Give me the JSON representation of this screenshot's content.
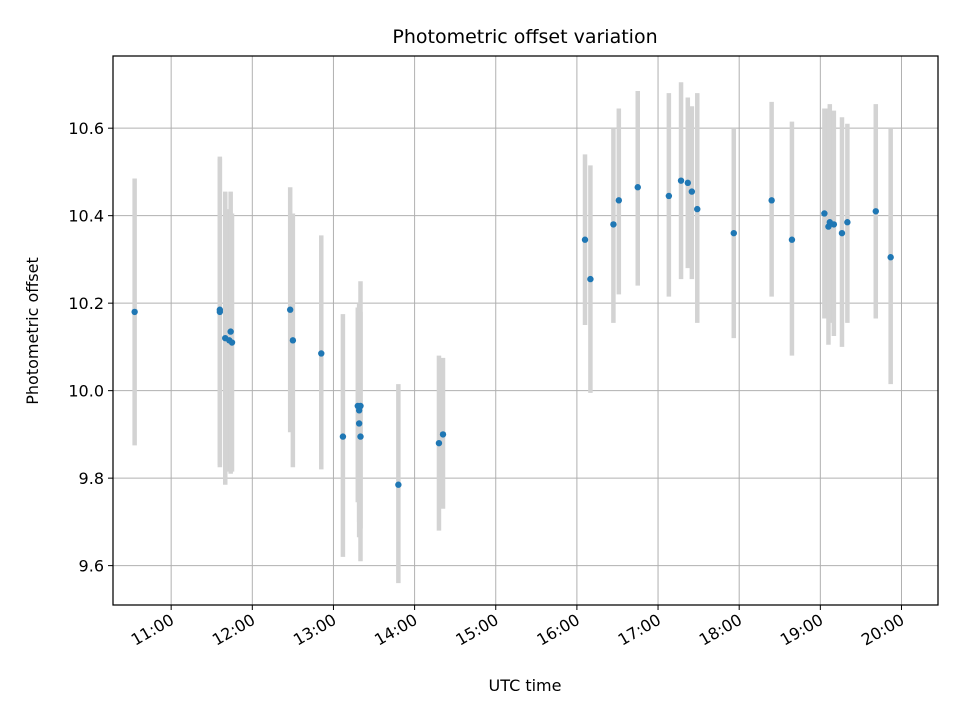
{
  "chart_data": {
    "type": "scatter",
    "title": "Photometric offset variation",
    "xlabel": "UTC time",
    "ylabel": "Photometric offset",
    "xlim": [
      "10:17",
      "20:27"
    ],
    "ylim": [
      9.51,
      10.765
    ],
    "grid": true,
    "x_ticks": [
      "11:00",
      "12:00",
      "13:00",
      "14:00",
      "15:00",
      "16:00",
      "17:00",
      "18:00",
      "19:00",
      "20:00"
    ],
    "y_ticks": [
      9.6,
      9.8,
      10.0,
      10.2,
      10.4,
      10.6
    ],
    "y_tick_labels": [
      "9.6",
      "9.8",
      "10.0",
      "10.2",
      "10.4",
      "10.6"
    ],
    "colors": {
      "point": "#1f77b4",
      "errorbar": "#d3d3d3",
      "grid": "#b0b0b0"
    },
    "points": [
      {
        "x": "10:33",
        "y": 10.18,
        "ylo": 9.875,
        "yhi": 10.485
      },
      {
        "x": "11:36",
        "y": 10.185,
        "ylo": 9.825,
        "yhi": 10.535
      },
      {
        "x": "11:36",
        "y": 10.18,
        "ylo": 9.83,
        "yhi": 10.53
      },
      {
        "x": "11:40",
        "y": 10.12,
        "ylo": 9.785,
        "yhi": 10.455
      },
      {
        "x": "11:43",
        "y": 10.115,
        "ylo": 9.815,
        "yhi": 10.415
      },
      {
        "x": "11:44",
        "y": 10.135,
        "ylo": 9.81,
        "yhi": 10.455
      },
      {
        "x": "11:45",
        "y": 10.11,
        "ylo": 9.815,
        "yhi": 10.405
      },
      {
        "x": "12:28",
        "y": 10.185,
        "ylo": 9.905,
        "yhi": 10.465
      },
      {
        "x": "12:30",
        "y": 10.115,
        "ylo": 9.825,
        "yhi": 10.405
      },
      {
        "x": "12:51",
        "y": 10.085,
        "ylo": 9.82,
        "yhi": 10.355
      },
      {
        "x": "13:07",
        "y": 9.895,
        "ylo": 9.62,
        "yhi": 10.175
      },
      {
        "x": "13:18",
        "y": 9.965,
        "ylo": 9.745,
        "yhi": 10.19
      },
      {
        "x": "13:19",
        "y": 9.955,
        "ylo": 9.7,
        "yhi": 10.2
      },
      {
        "x": "13:19",
        "y": 9.925,
        "ylo": 9.665,
        "yhi": 10.19
      },
      {
        "x": "13:20",
        "y": 9.965,
        "ylo": 9.685,
        "yhi": 10.25
      },
      {
        "x": "13:20",
        "y": 9.895,
        "ylo": 9.61,
        "yhi": 10.18
      },
      {
        "x": "13:48",
        "y": 9.785,
        "ylo": 9.56,
        "yhi": 10.015
      },
      {
        "x": "14:18",
        "y": 9.88,
        "ylo": 9.68,
        "yhi": 10.08
      },
      {
        "x": "14:21",
        "y": 9.9,
        "ylo": 9.73,
        "yhi": 10.075
      },
      {
        "x": "16:06",
        "y": 10.345,
        "ylo": 10.15,
        "yhi": 10.54
      },
      {
        "x": "16:10",
        "y": 10.255,
        "ylo": 9.995,
        "yhi": 10.515
      },
      {
        "x": "16:27",
        "y": 10.38,
        "ylo": 10.155,
        "yhi": 10.6
      },
      {
        "x": "16:31",
        "y": 10.435,
        "ylo": 10.22,
        "yhi": 10.645
      },
      {
        "x": "16:45",
        "y": 10.465,
        "ylo": 10.24,
        "yhi": 10.685
      },
      {
        "x": "17:08",
        "y": 10.445,
        "ylo": 10.215,
        "yhi": 10.68
      },
      {
        "x": "17:17",
        "y": 10.48,
        "ylo": 10.255,
        "yhi": 10.705
      },
      {
        "x": "17:22",
        "y": 10.475,
        "ylo": 10.28,
        "yhi": 10.67
      },
      {
        "x": "17:25",
        "y": 10.455,
        "ylo": 10.255,
        "yhi": 10.65
      },
      {
        "x": "17:29",
        "y": 10.415,
        "ylo": 10.155,
        "yhi": 10.68
      },
      {
        "x": "17:56",
        "y": 10.36,
        "ylo": 10.12,
        "yhi": 10.6
      },
      {
        "x": "18:24",
        "y": 10.435,
        "ylo": 10.215,
        "yhi": 10.66
      },
      {
        "x": "18:39",
        "y": 10.345,
        "ylo": 10.08,
        "yhi": 10.615
      },
      {
        "x": "19:03",
        "y": 10.405,
        "ylo": 10.165,
        "yhi": 10.645
      },
      {
        "x": "19:06",
        "y": 10.375,
        "ylo": 10.105,
        "yhi": 10.645
      },
      {
        "x": "19:07",
        "y": 10.385,
        "ylo": 10.155,
        "yhi": 10.655
      },
      {
        "x": "19:10",
        "y": 10.38,
        "ylo": 10.125,
        "yhi": 10.64
      },
      {
        "x": "19:16",
        "y": 10.36,
        "ylo": 10.1,
        "yhi": 10.625
      },
      {
        "x": "19:20",
        "y": 10.385,
        "ylo": 10.155,
        "yhi": 10.61
      },
      {
        "x": "19:41",
        "y": 10.41,
        "ylo": 10.165,
        "yhi": 10.655
      },
      {
        "x": "19:52",
        "y": 10.305,
        "ylo": 10.015,
        "yhi": 10.6
      }
    ]
  }
}
